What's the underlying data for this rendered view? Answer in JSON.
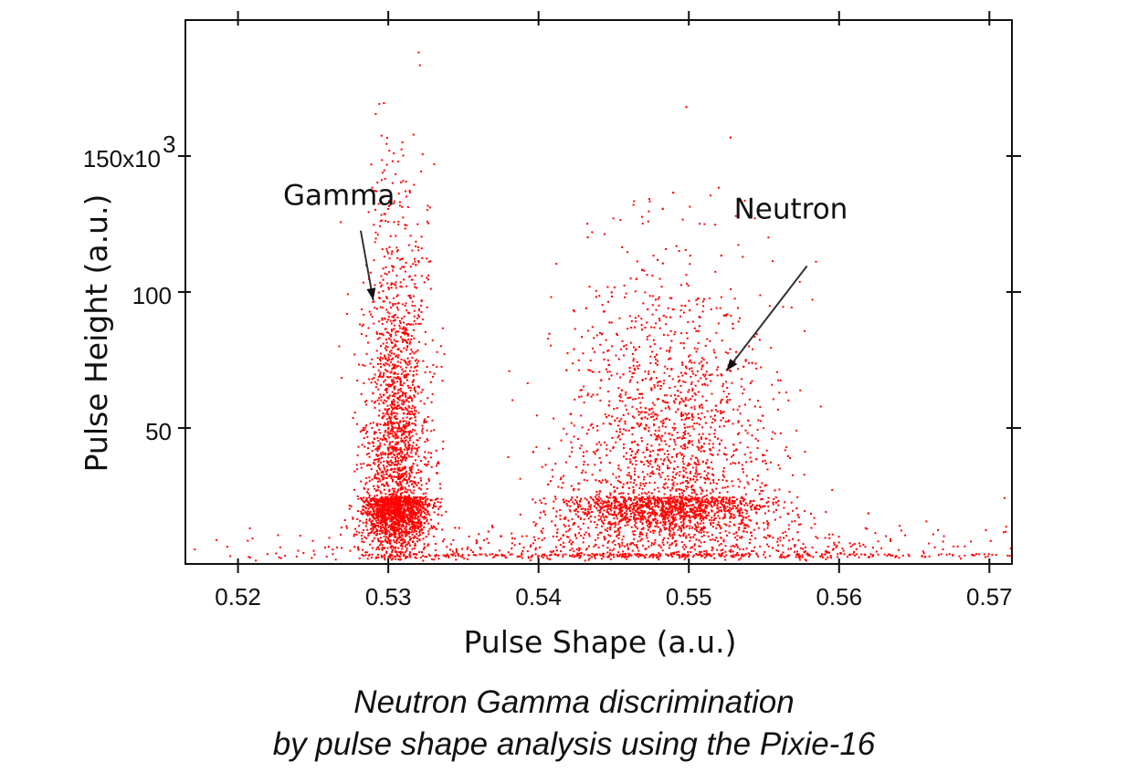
{
  "chart_data": {
    "type": "scatter",
    "title": "",
    "xlabel": "Pulse Shape (a.u.)",
    "ylabel": "Pulse Height (a.u.)",
    "xlim": [
      0.5165,
      0.5715
    ],
    "ylim": [
      0,
      200000
    ],
    "x_ticks": [
      {
        "value": 0.52,
        "label": "0.52"
      },
      {
        "value": 0.53,
        "label": "0.53"
      },
      {
        "value": 0.54,
        "label": "0.54"
      },
      {
        "value": 0.55,
        "label": "0.55"
      },
      {
        "value": 0.56,
        "label": "0.56"
      },
      {
        "value": 0.57,
        "label": "0.57"
      }
    ],
    "y_ticks": [
      {
        "value": 50000,
        "label": "50"
      },
      {
        "value": 100000,
        "label": "100"
      },
      {
        "value": 150000,
        "label": "150x10"
      }
    ],
    "y_tick_exponent": "3",
    "grid": false,
    "marker_color": "#ff0000",
    "series": [
      {
        "clusters": [
          {
            "x_center": 0.5305,
            "y_center": 25000,
            "x_spread": 0.0011,
            "y_spread": 30000,
            "weight": 0.42
          },
          {
            "x_center": 0.5485,
            "y_center": 25000,
            "x_spread": 0.0035,
            "y_spread": 25000,
            "weight": 0.46
          },
          {
            "x_center": 0.548,
            "y_center": 4000,
            "x_spread": 0.012,
            "y_spread": 3000,
            "weight": 0.12
          }
        ]
      }
    ],
    "annotations": [
      {
        "text": "Gamma",
        "x": 0.523,
        "y": 132000,
        "arrow_to": [
          0.529,
          97000
        ]
      },
      {
        "text": "Neutron",
        "x": 0.553,
        "y": 127000,
        "arrow_to": [
          0.5525,
          71000
        ]
      }
    ]
  },
  "caption": {
    "line1": "Neutron Gamma discrimination",
    "line2": "by pulse shape analysis using the Pixie-16"
  }
}
